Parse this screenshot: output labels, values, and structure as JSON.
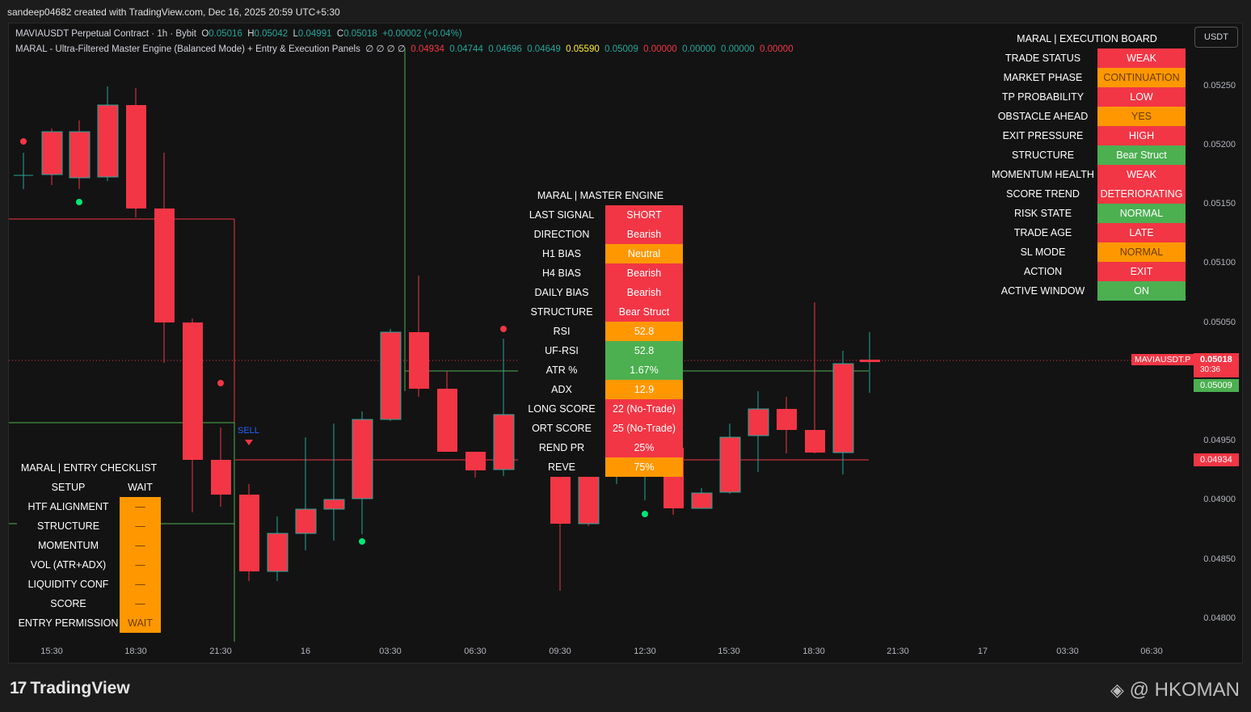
{
  "header": {
    "attribution": "sandeep04682 created with TradingView.com, Dec 16, 2025 20:59 UTC+5:30"
  },
  "legend": {
    "line1": {
      "symbol": "MAVIAUSDT Perpetual Contract · 1h · Bybit",
      "o_label": "O",
      "o": "0.05016",
      "h_label": "H",
      "h": "0.05042",
      "l_label": "L",
      "l": "0.04991",
      "c_label": "C",
      "c": "0.05018",
      "change": "+0.00002 (+0.04%)"
    },
    "line2": {
      "indicator": "MARAL - Ultra-Filtered Master Engine (Balanced Mode) + Entry & Execution Panels",
      "zeros": "∅  ∅  ∅  ∅",
      "v1": "0.04934",
      "v2": "0.04744",
      "v3": "0.04696",
      "v4": "0.04649",
      "v5": "0.05590",
      "v6": "0.05009",
      "v7": "0.00000",
      "v8": "0.00000",
      "v9": "0.00000",
      "v10": "0.00000"
    }
  },
  "currency_button": "USDT",
  "price_axis": {
    "ticks": [
      "0.05250",
      "0.05200",
      "0.05150",
      "0.05100",
      "0.05050",
      "0.04950",
      "0.04900",
      "0.04850",
      "0.04800"
    ],
    "symbol_tag": "MAVIAUSDT.P",
    "last_price": "0.05018",
    "countdown": "30:36",
    "green_tag": "0.05009",
    "red_tag": "0.04934"
  },
  "time_axis": [
    "15:30",
    "18:30",
    "21:30",
    "16",
    "03:30",
    "06:30",
    "09:30",
    "12:30",
    "15:30",
    "18:30",
    "21:30",
    "17",
    "03:30",
    "06:30"
  ],
  "sell_label": "SELL",
  "execution_board": {
    "title": "MARAL | EXECUTION BOARD",
    "rows": [
      {
        "k": "TRADE STATUS",
        "v": "WEAK"
      },
      {
        "k": "MARKET PHASE",
        "v": "CONTINUATION"
      },
      {
        "k": "TP PROBABILITY",
        "v": "LOW"
      },
      {
        "k": "OBSTACLE AHEAD",
        "v": "YES"
      },
      {
        "k": "EXIT PRESSURE",
        "v": "HIGH"
      },
      {
        "k": "STRUCTURE",
        "v": "Bear Struct"
      },
      {
        "k": "MOMENTUM HEALTH",
        "v": "WEAK"
      },
      {
        "k": "SCORE TREND",
        "v": "DETERIORATING"
      },
      {
        "k": "RISK STATE",
        "v": "NORMAL"
      },
      {
        "k": "TRADE AGE",
        "v": "LATE"
      },
      {
        "k": "SL MODE",
        "v": "NORMAL"
      },
      {
        "k": "ACTION",
        "v": "EXIT"
      },
      {
        "k": "ACTIVE WINDOW",
        "v": "ON"
      }
    ]
  },
  "master_engine": {
    "title": "MARAL | MASTER ENGINE",
    "rows": [
      {
        "k": "LAST SIGNAL",
        "v": "SHORT"
      },
      {
        "k": "DIRECTION",
        "v": "Bearish"
      },
      {
        "k": "H1 BIAS",
        "v": "Neutral"
      },
      {
        "k": "H4 BIAS",
        "v": "Bearish"
      },
      {
        "k": "DAILY BIAS",
        "v": "Bearish"
      },
      {
        "k": "STRUCTURE",
        "v": "Bear Struct"
      },
      {
        "k": "RSI",
        "v": "52.8"
      },
      {
        "k": "UF-RSI",
        "v": "52.8"
      },
      {
        "k": "ATR %",
        "v": "1.67%"
      },
      {
        "k": "ADX",
        "v": "12.9"
      },
      {
        "k": "LONG SCORE",
        "v": "22 (No-Trade)"
      },
      {
        "k": "ORT SCORE",
        "v": "25 (No-Trade)"
      },
      {
        "k": "REND PR",
        "v": "25%"
      },
      {
        "k": "REVE",
        "v": "75%"
      }
    ]
  },
  "entry_checklist": {
    "title": "MARAL | ENTRY CHECKLIST",
    "rows": [
      {
        "k": "SETUP",
        "v": "WAIT"
      },
      {
        "k": "HTF ALIGNMENT",
        "v": "—"
      },
      {
        "k": "STRUCTURE",
        "v": "—"
      },
      {
        "k": "MOMENTUM",
        "v": "—"
      },
      {
        "k": "VOL (ATR+ADX)",
        "v": "—"
      },
      {
        "k": "LIQUIDITY CONF",
        "v": "—"
      },
      {
        "k": "SCORE",
        "v": "—"
      },
      {
        "k": "ENTRY PERMISSION",
        "v": "WAIT"
      }
    ]
  },
  "footer": {
    "brand": "TradingView",
    "watermark": "@ HKOMAN"
  },
  "colors": {
    "bull": "#26a69a",
    "bear": "#f23645",
    "orange": "#ff9800",
    "green": "#4caf50"
  }
}
